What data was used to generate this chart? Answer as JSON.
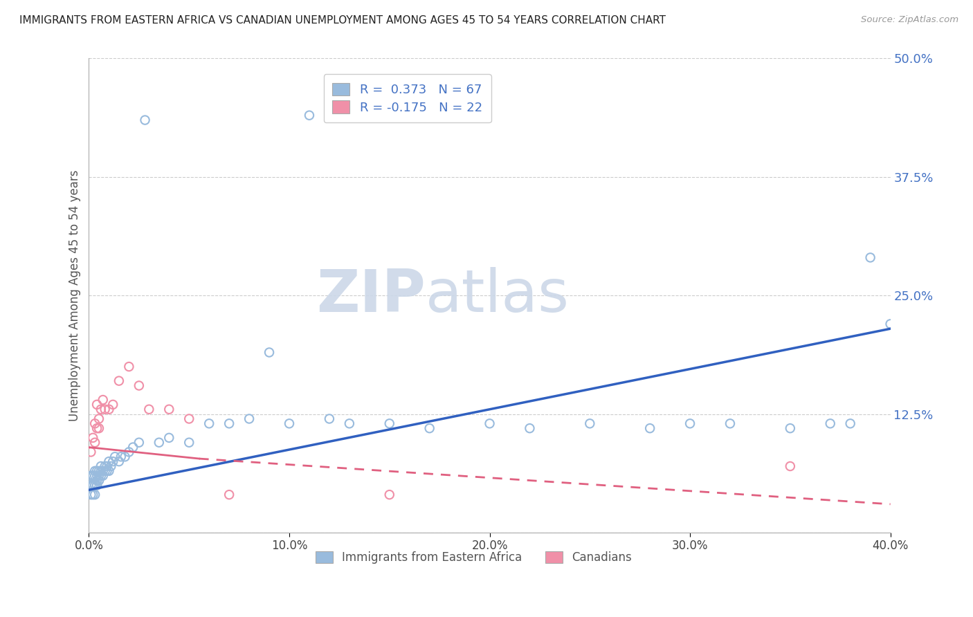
{
  "title": "IMMIGRANTS FROM EASTERN AFRICA VS CANADIAN UNEMPLOYMENT AMONG AGES 45 TO 54 YEARS CORRELATION CHART",
  "source": "Source: ZipAtlas.com",
  "ylabel": "Unemployment Among Ages 45 to 54 years",
  "xlim": [
    0.0,
    0.4
  ],
  "ylim": [
    0.0,
    0.5
  ],
  "xticks": [
    0.0,
    0.1,
    0.2,
    0.3,
    0.4
  ],
  "yticks": [
    0.0,
    0.125,
    0.25,
    0.375,
    0.5
  ],
  "blue_R": 0.373,
  "blue_N": 67,
  "pink_R": -0.175,
  "pink_N": 22,
  "blue_dot_color": "#99bbdd",
  "pink_dot_color": "#f090a8",
  "blue_line_color": "#3060c0",
  "pink_line_color": "#e06080",
  "ytick_color": "#4472c4",
  "watermark_color": "#ccd8e8",
  "legend_label_blue": "Immigrants from Eastern Africa",
  "legend_label_pink": "Canadians",
  "blue_scatter_x": [
    0.001,
    0.001,
    0.001,
    0.002,
    0.002,
    0.002,
    0.002,
    0.002,
    0.003,
    0.003,
    0.003,
    0.003,
    0.003,
    0.004,
    0.004,
    0.004,
    0.004,
    0.004,
    0.005,
    0.005,
    0.005,
    0.005,
    0.006,
    0.006,
    0.006,
    0.007,
    0.007,
    0.008,
    0.008,
    0.009,
    0.009,
    0.01,
    0.01,
    0.011,
    0.012,
    0.013,
    0.015,
    0.016,
    0.018,
    0.02,
    0.022,
    0.025,
    0.028,
    0.035,
    0.04,
    0.05,
    0.06,
    0.07,
    0.08,
    0.09,
    0.1,
    0.11,
    0.12,
    0.13,
    0.15,
    0.17,
    0.2,
    0.22,
    0.25,
    0.28,
    0.3,
    0.32,
    0.35,
    0.37,
    0.38,
    0.39,
    0.4
  ],
  "blue_scatter_y": [
    0.04,
    0.05,
    0.06,
    0.04,
    0.05,
    0.06,
    0.05,
    0.06,
    0.04,
    0.05,
    0.06,
    0.05,
    0.065,
    0.05,
    0.06,
    0.05,
    0.055,
    0.065,
    0.055,
    0.06,
    0.065,
    0.055,
    0.06,
    0.065,
    0.07,
    0.06,
    0.065,
    0.065,
    0.07,
    0.065,
    0.07,
    0.065,
    0.075,
    0.07,
    0.075,
    0.08,
    0.075,
    0.08,
    0.08,
    0.085,
    0.09,
    0.095,
    0.435,
    0.095,
    0.1,
    0.095,
    0.115,
    0.115,
    0.12,
    0.19,
    0.115,
    0.44,
    0.12,
    0.115,
    0.115,
    0.11,
    0.115,
    0.11,
    0.115,
    0.11,
    0.115,
    0.115,
    0.11,
    0.115,
    0.115,
    0.29,
    0.22
  ],
  "pink_scatter_x": [
    0.001,
    0.002,
    0.003,
    0.003,
    0.004,
    0.004,
    0.005,
    0.005,
    0.006,
    0.007,
    0.008,
    0.01,
    0.012,
    0.015,
    0.02,
    0.025,
    0.03,
    0.04,
    0.05,
    0.07,
    0.15,
    0.35
  ],
  "pink_scatter_y": [
    0.085,
    0.1,
    0.095,
    0.115,
    0.135,
    0.11,
    0.12,
    0.11,
    0.13,
    0.14,
    0.13,
    0.13,
    0.135,
    0.16,
    0.175,
    0.155,
    0.13,
    0.13,
    0.12,
    0.04,
    0.04,
    0.07
  ],
  "blue_line_x0": 0.0,
  "blue_line_y0": 0.045,
  "blue_line_x1": 0.4,
  "blue_line_y1": 0.215,
  "pink_line_solid_x0": 0.0,
  "pink_line_solid_y0": 0.09,
  "pink_line_solid_x1": 0.055,
  "pink_line_solid_y1": 0.078,
  "pink_line_dash_x0": 0.055,
  "pink_line_dash_y0": 0.078,
  "pink_line_dash_x1": 0.4,
  "pink_line_dash_y1": 0.03
}
